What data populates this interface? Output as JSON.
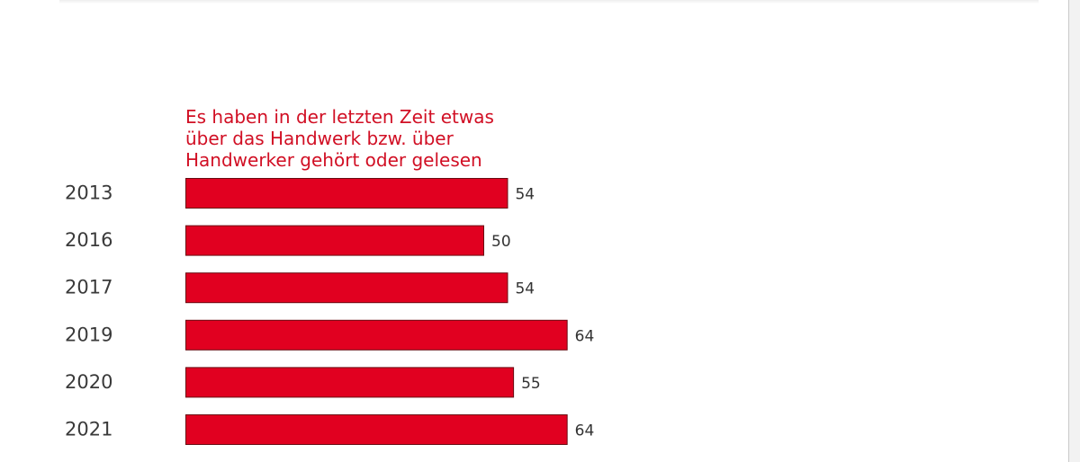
{
  "chart_data": {
    "type": "bar",
    "orientation": "horizontal",
    "series_title": "Es haben in der letzten Zeit etwas\nüber das Handwerk bzw. über\nHandwerker gehört oder gelesen",
    "categories": [
      "2013",
      "2016",
      "2017",
      "2019",
      "2020",
      "2021"
    ],
    "series": [
      {
        "name": "Es haben in der letzten Zeit etwas über das Handwerk bzw. über Handwerker gehört oder gelesen",
        "values": [
          54,
          50,
          54,
          64,
          55,
          64
        ]
      }
    ],
    "data_labels": [
      "54",
      "50",
      "54",
      "64",
      "55",
      "64"
    ],
    "bar_color": "#e10020",
    "title_color": "#d10f24",
    "xlim": [
      0,
      100
    ],
    "grid": false,
    "axis_visible": false,
    "legend": "none"
  }
}
